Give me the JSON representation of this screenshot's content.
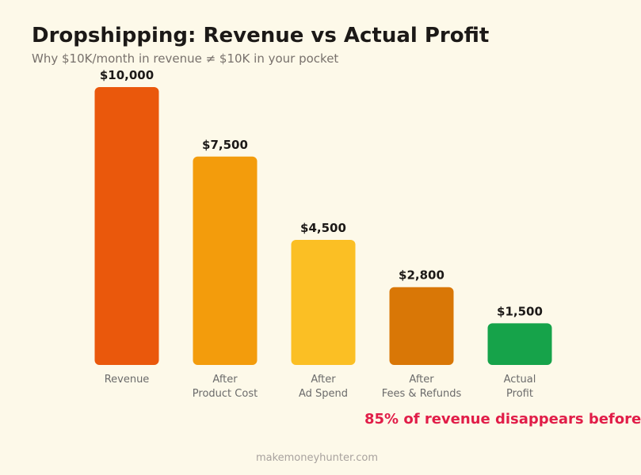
{
  "header": {
    "title": "Dropshipping: Revenue vs Actual Profit",
    "subtitle": "Why $10K/month in revenue ≠ $10K in your pocket"
  },
  "callout": "85% of revenue disappears before",
  "footer": "makemoneyhunter.com",
  "chart_data": {
    "type": "bar",
    "title": "Dropshipping: Revenue vs Actual Profit",
    "subtitle": "Why $10K/month in revenue ≠ $10K in your pocket",
    "categories": [
      [
        "Revenue"
      ],
      [
        "After",
        "Product Cost"
      ],
      [
        "After",
        "Ad Spend"
      ],
      [
        "After",
        "Fees & Refunds"
      ],
      [
        "Actual",
        "Profit"
      ]
    ],
    "values": [
      10000,
      7500,
      4500,
      2800,
      1500
    ],
    "value_labels": [
      "$10,000",
      "$7,500",
      "$4,500",
      "$2,800",
      "$1,500"
    ],
    "colors": [
      "#ea580c",
      "#f39c0c",
      "#fbbf24",
      "#d97706",
      "#16a34a"
    ],
    "ylim": [
      0,
      10000
    ],
    "grid": false,
    "legend": false
  }
}
